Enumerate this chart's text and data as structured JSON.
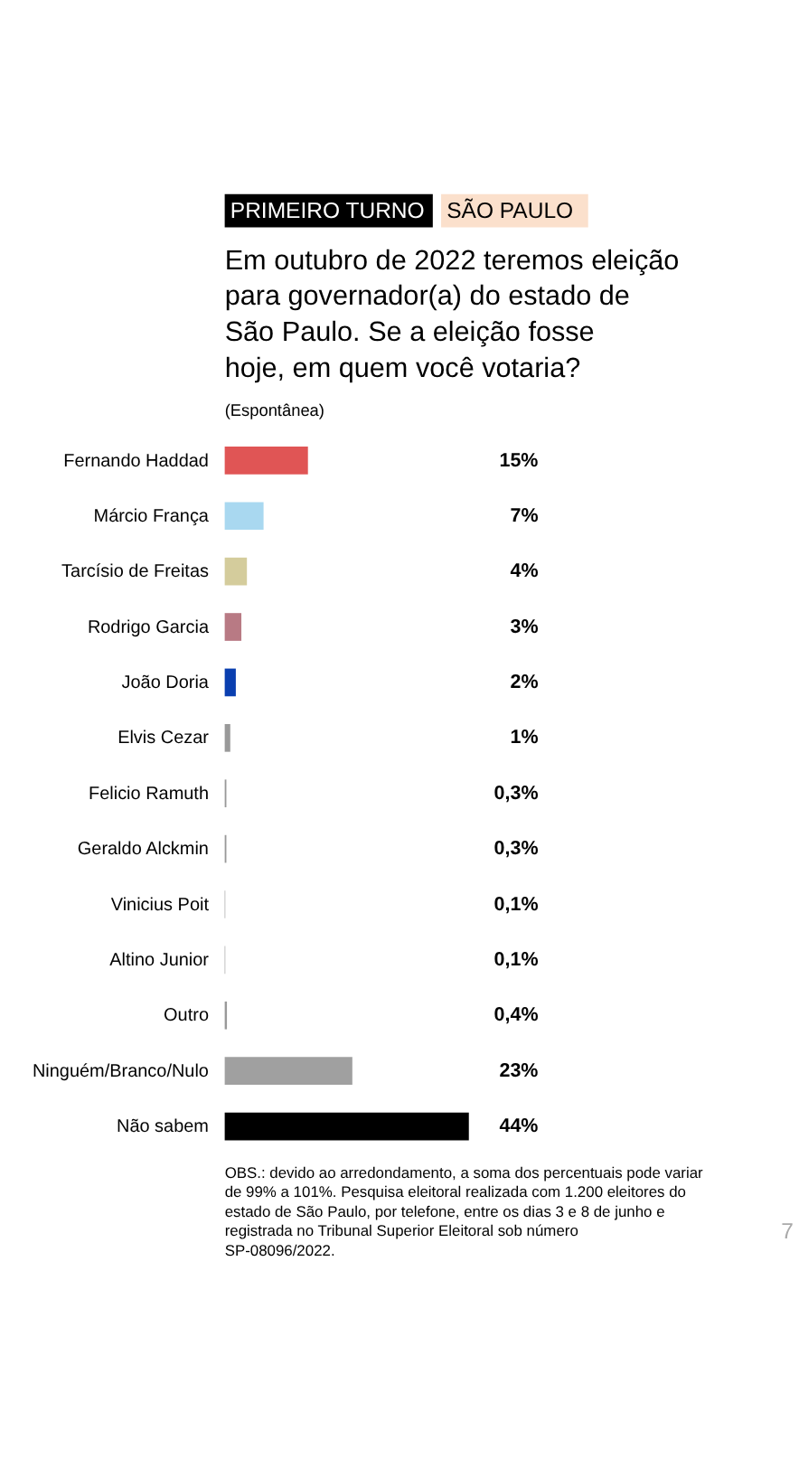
{
  "chart_data": {
    "type": "bar",
    "orientation": "horizontal",
    "title": "Em outubro de 2022 teremos eleição para governador(a) do estado de São Paulo. Se a eleição fosse hoje, em quem você votaria?",
    "subtitle": "(Espontânea)",
    "annotations": [
      "PRIMEIRO TURNO",
      "SÃO PAULO",
      "OBS.: devido ao arredondamento, a soma dos percentuais pode variar de 99% a 101%. Pesquisa eleitoral realizada com 1.200 eleitores do estado de São Paulo, por telefone, entre os dias 3 e 8 de junho e registrada no Tribunal Superior Eleitoral sob número SP-08096/2022.",
      "7"
    ],
    "categories": [
      "Fernando Haddad",
      "Márcio França",
      "Tarcísio de Freitas",
      "Rodrigo Garcia",
      "João Doria",
      "Elvis Cezar",
      "Felicio Ramuth",
      "Geraldo Alckmin",
      "Vinicius Poit",
      "Altino Junior",
      "Outro",
      "Ninguém/Branco/Nulo",
      "Não sabem"
    ],
    "values": [
      15,
      7,
      4,
      3,
      2,
      1,
      0.3,
      0.3,
      0.1,
      0.1,
      0.4,
      23,
      44
    ],
    "value_labels": [
      "15%",
      "7%",
      "4%",
      "3%",
      "2%",
      "1%",
      "0,3%",
      "0,3%",
      "0,1%",
      "0,1%",
      "0,4%",
      "23%",
      "44%"
    ],
    "colors": [
      "#e05555",
      "#a9d8f0",
      "#d4cc9c",
      "#b87a84",
      "#0a3fb0",
      "#999999",
      "#999999",
      "#999999",
      "#999999",
      "#999999",
      "#999999",
      "#a0a0a0",
      "#000000"
    ]
  }
}
